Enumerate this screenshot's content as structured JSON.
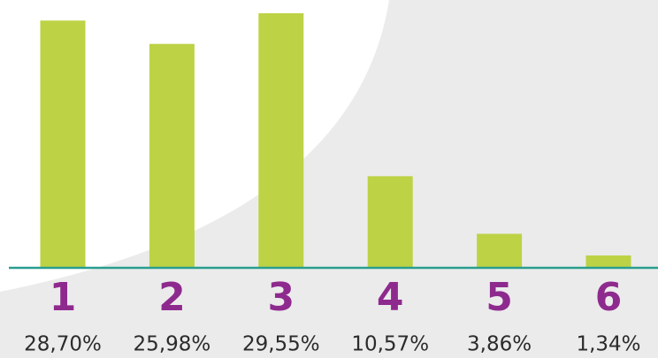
{
  "chart_data": {
    "type": "bar",
    "categories": [
      "1",
      "2",
      "3",
      "4",
      "5",
      "6"
    ],
    "values": [
      28.7,
      25.98,
      29.55,
      10.57,
      3.86,
      1.34
    ],
    "value_labels": [
      "28,70%",
      "25,98%",
      "29,55%",
      "10,57%",
      "3,86%",
      "1,34%"
    ],
    "color": "#bdd245",
    "baseline_color": "#2a9d8f",
    "category_color": "#8e2a8e"
  }
}
